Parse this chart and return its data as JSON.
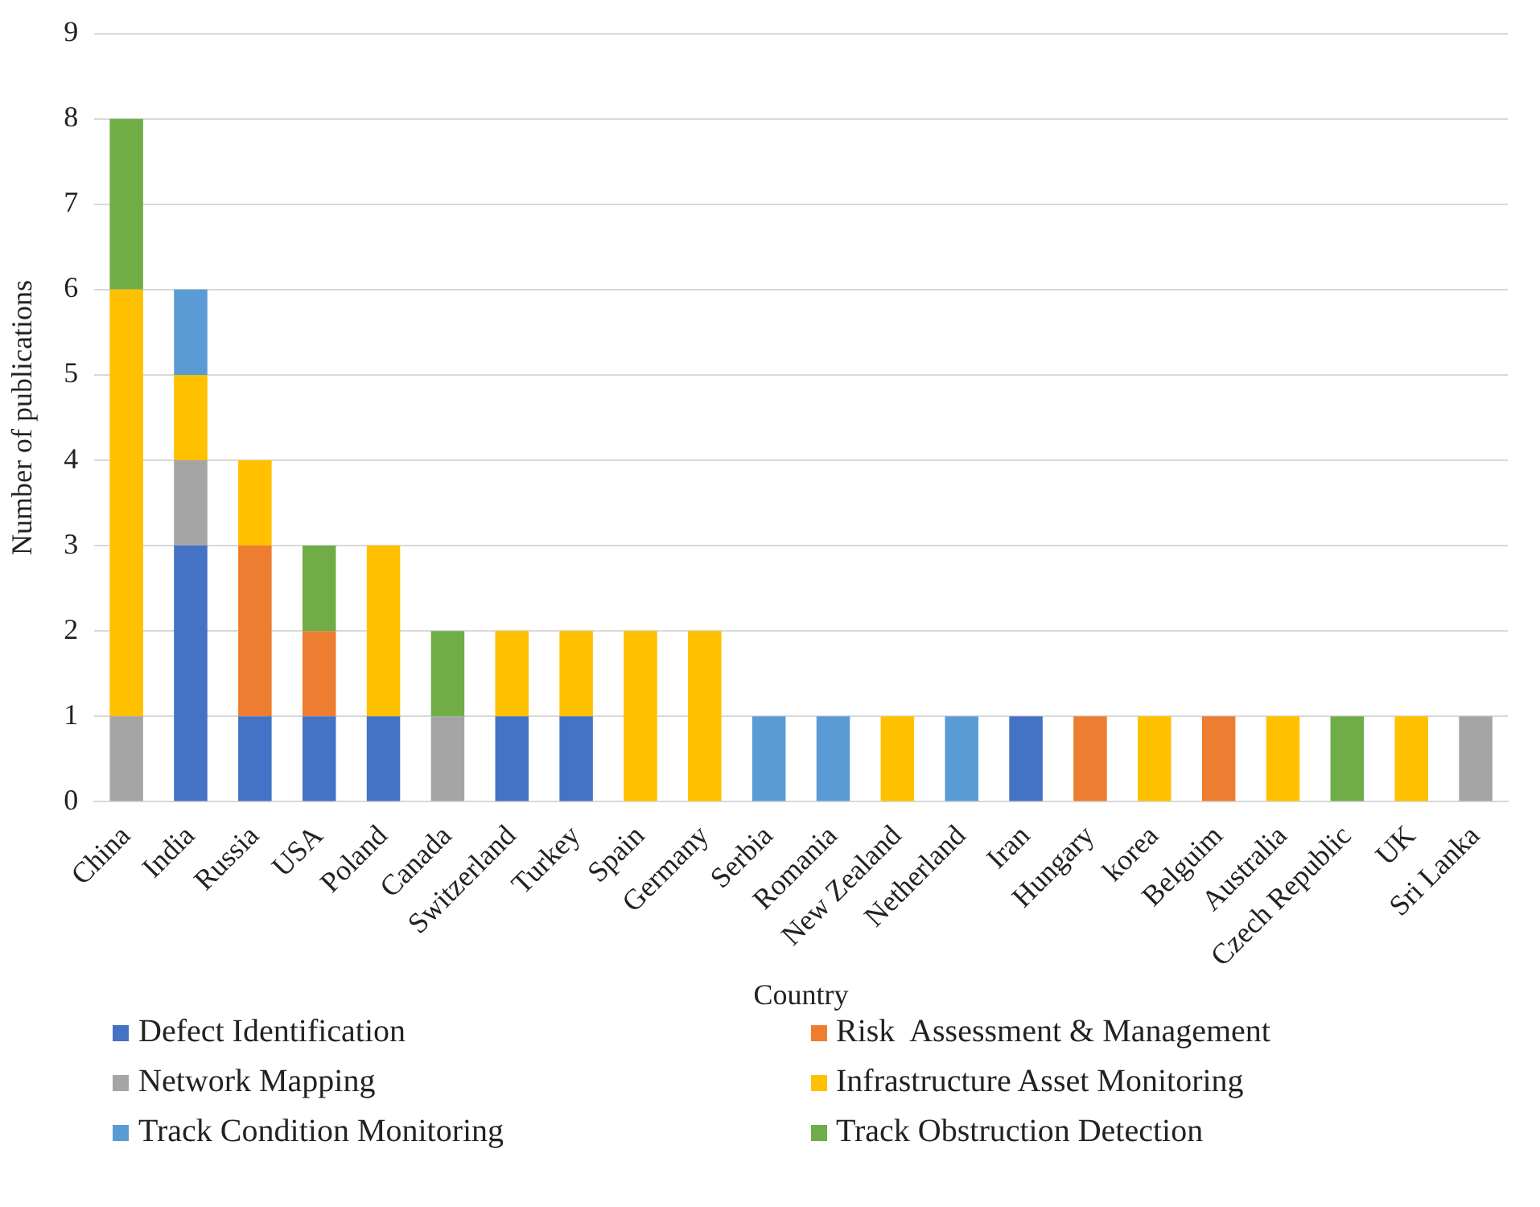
{
  "chart_data": {
    "type": "bar",
    "stacked": true,
    "xlabel": "Country",
    "ylabel": "Number of publications",
    "ylim": [
      0,
      9
    ],
    "yticks": [
      0,
      1,
      2,
      3,
      4,
      5,
      6,
      7,
      8,
      9
    ],
    "grid": "y",
    "legend": "bottom",
    "categories": [
      "China",
      "India",
      "Russia",
      "USA",
      "Poland",
      "Canada",
      "Switzerland",
      "Turkey",
      "Spain",
      "Germany",
      "Serbia",
      "Romania",
      "New Zealand",
      "Netherland",
      "Iran",
      "Hungary",
      "korea",
      "Belguim",
      "Australia",
      "Czech Republic",
      "UK",
      "Sri Lanka"
    ],
    "series": [
      {
        "name": "Defect Identification",
        "color": "#4472c4",
        "values": [
          0,
          3,
          1,
          1,
          1,
          0,
          1,
          1,
          0,
          0,
          0,
          0,
          0,
          0,
          1,
          0,
          0,
          0,
          0,
          0,
          0,
          0
        ]
      },
      {
        "name": "Risk  Assessment & Management",
        "color": "#ed7d31",
        "values": [
          0,
          0,
          2,
          1,
          0,
          0,
          0,
          0,
          0,
          0,
          0,
          0,
          0,
          0,
          0,
          1,
          0,
          1,
          0,
          0,
          0,
          0
        ]
      },
      {
        "name": "Network Mapping",
        "color": "#a5a5a5",
        "values": [
          1,
          1,
          0,
          0,
          0,
          1,
          0,
          0,
          0,
          0,
          0,
          0,
          0,
          0,
          0,
          0,
          0,
          0,
          0,
          0,
          0,
          1
        ]
      },
      {
        "name": "Infrastructure Asset Monitoring",
        "color": "#ffc000",
        "values": [
          5,
          1,
          1,
          0,
          2,
          0,
          1,
          1,
          2,
          2,
          0,
          0,
          1,
          0,
          0,
          0,
          1,
          0,
          1,
          0,
          1,
          0
        ]
      },
      {
        "name": "Track Condition Monitoring",
        "color": "#5b9bd5",
        "values": [
          0,
          1,
          0,
          0,
          0,
          0,
          0,
          0,
          0,
          0,
          1,
          1,
          0,
          1,
          0,
          0,
          0,
          0,
          0,
          0,
          0,
          0
        ]
      },
      {
        "name": "Track Obstruction Detection",
        "color": "#70ad47",
        "values": [
          2,
          0,
          0,
          1,
          0,
          1,
          0,
          0,
          0,
          0,
          0,
          0,
          0,
          0,
          0,
          0,
          0,
          0,
          0,
          1,
          0,
          0
        ]
      }
    ]
  }
}
